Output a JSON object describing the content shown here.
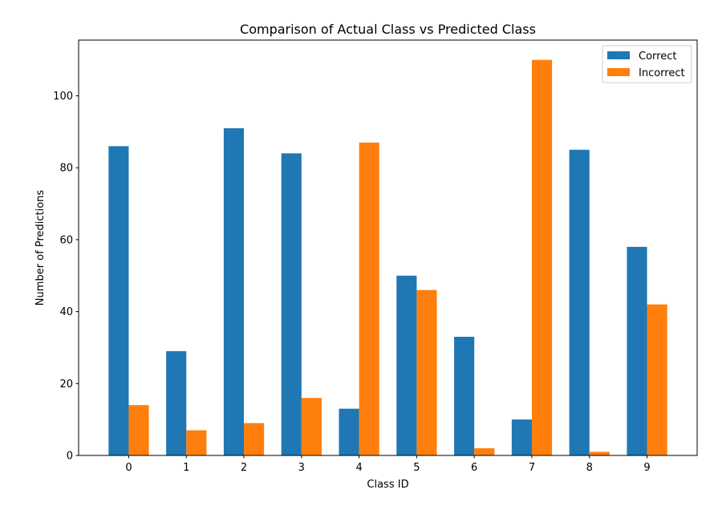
{
  "chart_data": {
    "type": "bar",
    "title": "Comparison of Actual Class vs Predicted Class",
    "xlabel": "Class ID",
    "ylabel": "Number of Predictions",
    "categories": [
      "0",
      "1",
      "2",
      "3",
      "4",
      "5",
      "6",
      "7",
      "8",
      "9"
    ],
    "series": [
      {
        "name": "Correct",
        "color": "#1f77b4",
        "values": [
          86,
          29,
          91,
          84,
          13,
          50,
          33,
          10,
          85,
          58
        ]
      },
      {
        "name": "Incorrect",
        "color": "#ff7f0e",
        "values": [
          14,
          7,
          9,
          16,
          87,
          46,
          2,
          110,
          1,
          42
        ]
      }
    ],
    "ylim": [
      0,
      115.5
    ],
    "yticks": [
      0,
      20,
      40,
      60,
      80,
      100
    ],
    "grid": false,
    "legend_position": "top-right"
  }
}
